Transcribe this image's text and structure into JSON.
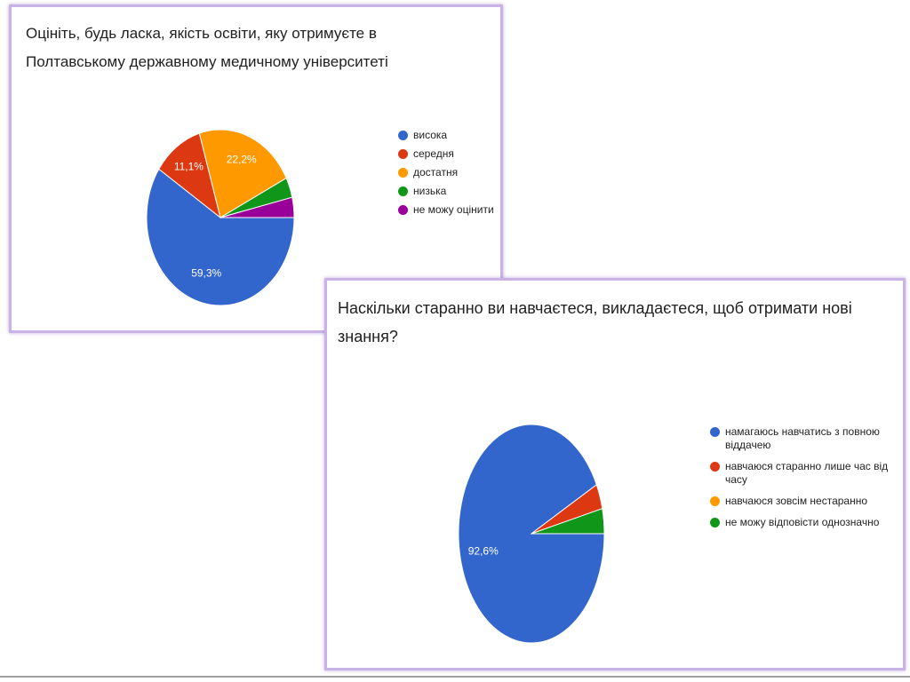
{
  "chart_data": [
    {
      "type": "pie",
      "title": "Оцініть, будь ласка,  якість освіти, яку отримуєте в Полтавському державному медичному університеті",
      "categories": [
        "висока",
        "середня",
        "достатня",
        "низька",
        "не можу оцінити"
      ],
      "values": [
        59.3,
        11.1,
        22.2,
        3.7,
        3.7
      ],
      "colors": [
        "#3366cc",
        "#dc3912",
        "#ff9900",
        "#109618",
        "#990099"
      ],
      "slice_labels": [
        "59,3%",
        "11,1%",
        "22,2%",
        "",
        ""
      ],
      "legend_position": "right"
    },
    {
      "type": "pie",
      "title": "Наскільки старанно ви навчаєтеся, викладаєтеся, щоб отримати нові знання?",
      "categories": [
        "намагаюсь навчатись з повною віддачею",
        "навчаюся старанно лише час від часу",
        "навчаюся зовсім нестаранно",
        "не можу відповісти однозначно"
      ],
      "values": [
        92.6,
        3.7,
        0,
        3.7
      ],
      "colors": [
        "#3366cc",
        "#dc3912",
        "#ff9900",
        "#109618"
      ],
      "slice_labels": [
        "92,6%",
        "",
        "",
        ""
      ],
      "legend_position": "right"
    }
  ]
}
